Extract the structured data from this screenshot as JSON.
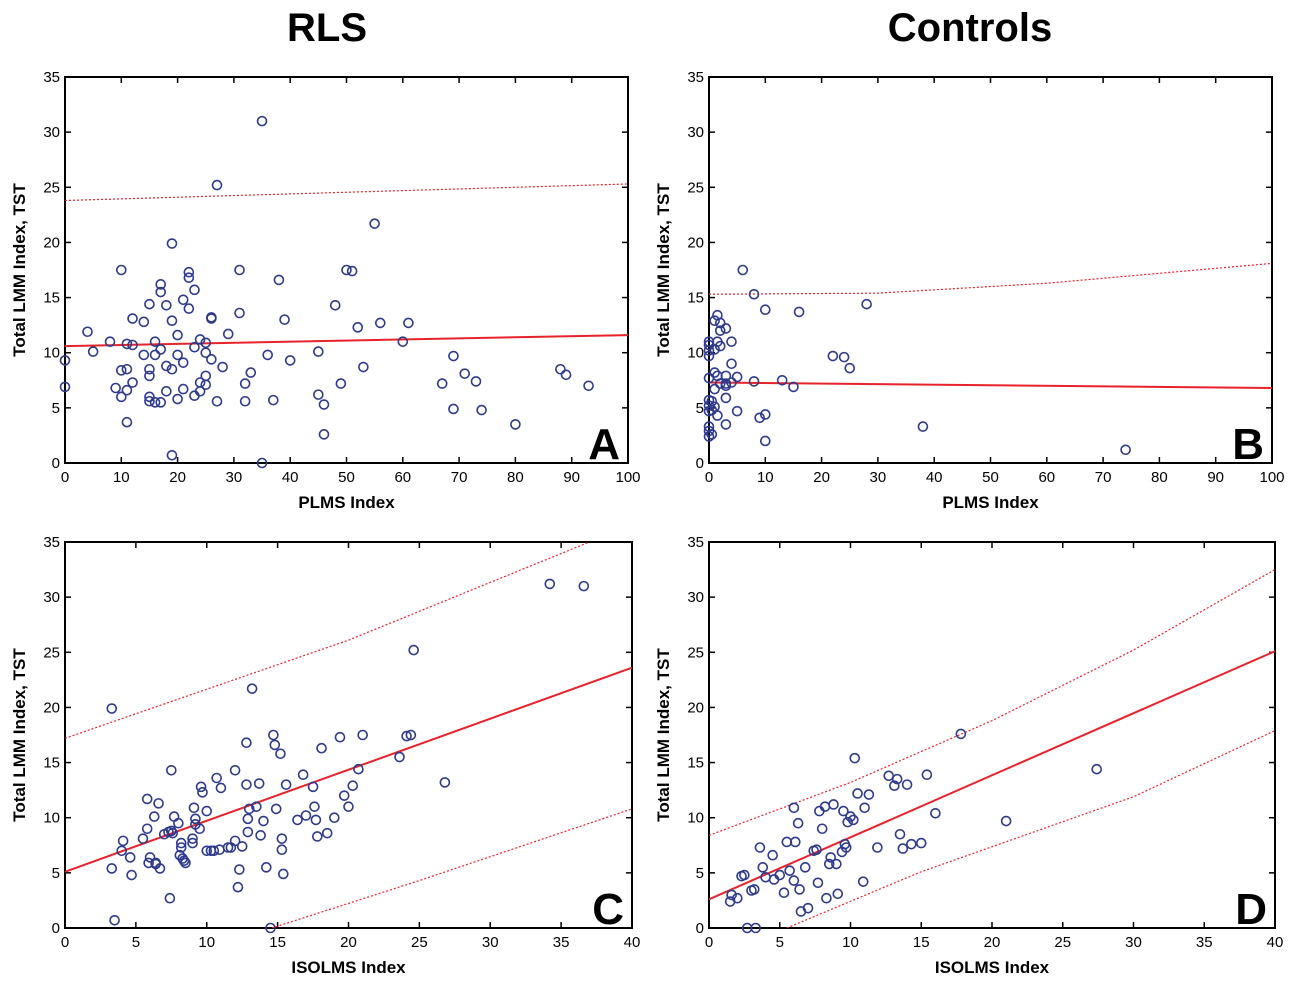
{
  "column_titles": [
    "RLS",
    "Controls"
  ],
  "colors": {
    "fit_line": "#e8222a",
    "points": "#2e3a8c",
    "axis": "#000000"
  },
  "chart_data": [
    {
      "panel": "A",
      "type": "scatter",
      "xlabel": "PLMS Index",
      "ylabel": "Total LMM Index, TST",
      "xlim": [
        0,
        100
      ],
      "ylim": [
        0,
        35
      ],
      "xticks": [
        0,
        10,
        20,
        30,
        40,
        50,
        60,
        70,
        80,
        90,
        100
      ],
      "yticks": [
        0,
        5,
        10,
        15,
        20,
        25,
        30,
        35
      ],
      "fit": [
        [
          0,
          10.6
        ],
        [
          100,
          11.6
        ]
      ],
      "band_upper": [
        [
          0,
          23.8
        ],
        [
          100,
          25.3
        ]
      ],
      "band_lower": [],
      "points": [
        [
          0,
          9.3
        ],
        [
          0,
          6.9
        ],
        [
          4,
          11.9
        ],
        [
          5,
          10.1
        ],
        [
          8,
          11
        ],
        [
          9,
          6.8
        ],
        [
          10,
          17.5
        ],
        [
          10,
          8.4
        ],
        [
          10,
          6
        ],
        [
          11,
          10.8
        ],
        [
          11,
          8.5
        ],
        [
          11,
          3.7
        ],
        [
          11,
          6.6
        ],
        [
          12,
          10.7
        ],
        [
          12,
          13.1
        ],
        [
          12,
          7.3
        ],
        [
          14,
          9.8
        ],
        [
          14,
          12.8
        ],
        [
          15,
          14.4
        ],
        [
          15,
          6
        ],
        [
          15,
          8.5
        ],
        [
          15,
          5.6
        ],
        [
          15,
          7.9
        ],
        [
          16,
          9.8
        ],
        [
          16,
          11
        ],
        [
          16,
          5.5
        ],
        [
          17,
          16.2
        ],
        [
          17,
          15.5
        ],
        [
          17,
          5.5
        ],
        [
          17,
          10.3
        ],
        [
          18,
          14.3
        ],
        [
          18,
          8.8
        ],
        [
          18,
          6.5
        ],
        [
          19,
          19.9
        ],
        [
          19,
          8.5
        ],
        [
          19,
          12.9
        ],
        [
          19,
          0.7
        ],
        [
          20,
          11.6
        ],
        [
          20,
          9.8
        ],
        [
          20,
          5.8
        ],
        [
          21,
          14.8
        ],
        [
          21,
          6.7
        ],
        [
          21,
          9.1
        ],
        [
          22,
          17.3
        ],
        [
          22,
          16.8
        ],
        [
          22,
          14
        ],
        [
          23,
          15.7
        ],
        [
          23,
          6.1
        ],
        [
          23,
          10.5
        ],
        [
          24,
          11.2
        ],
        [
          24,
          7.3
        ],
        [
          24,
          6.5
        ],
        [
          25,
          10.9
        ],
        [
          25,
          10
        ],
        [
          25,
          7.9
        ],
        [
          25,
          7.1
        ],
        [
          26,
          9.4
        ],
        [
          26,
          13.1
        ],
        [
          26,
          13.2
        ],
        [
          27,
          5.6
        ],
        [
          27,
          25.2
        ],
        [
          28,
          8.7
        ],
        [
          29,
          11.7
        ],
        [
          31,
          17.5
        ],
        [
          31,
          13.6
        ],
        [
          32,
          7.2
        ],
        [
          32,
          5.6
        ],
        [
          33,
          8.2
        ],
        [
          35,
          31
        ],
        [
          35,
          0
        ],
        [
          36,
          9.8
        ],
        [
          37,
          5.7
        ],
        [
          38,
          16.6
        ],
        [
          39,
          13
        ],
        [
          40,
          9.3
        ],
        [
          45,
          6.2
        ],
        [
          45,
          10.1
        ],
        [
          46,
          5.3
        ],
        [
          46,
          2.6
        ],
        [
          48,
          14.3
        ],
        [
          49,
          7.2
        ],
        [
          50,
          17.5
        ],
        [
          51,
          17.4
        ],
        [
          52,
          12.3
        ],
        [
          53,
          8.7
        ],
        [
          55,
          21.7
        ],
        [
          56,
          12.7
        ],
        [
          60,
          11
        ],
        [
          61,
          12.7
        ],
        [
          67,
          7.2
        ],
        [
          69,
          9.7
        ],
        [
          69,
          4.9
        ],
        [
          71,
          8.1
        ],
        [
          73,
          7.4
        ],
        [
          74,
          4.8
        ],
        [
          80,
          3.5
        ],
        [
          88,
          8.5
        ],
        [
          89,
          8
        ],
        [
          93,
          7
        ]
      ]
    },
    {
      "panel": "B",
      "type": "scatter",
      "xlabel": "PLMS Index",
      "ylabel": "Total LMM Index, TST",
      "xlim": [
        0,
        100
      ],
      "ylim": [
        0,
        35
      ],
      "xticks": [
        0,
        10,
        20,
        30,
        40,
        50,
        60,
        70,
        80,
        90,
        100
      ],
      "yticks": [
        0,
        5,
        10,
        15,
        20,
        25,
        30,
        35
      ],
      "fit": [
        [
          0,
          7.3
        ],
        [
          100,
          6.8
        ]
      ],
      "band_upper": [
        [
          0,
          15.3
        ],
        [
          30,
          15.4
        ],
        [
          60,
          16.3
        ],
        [
          100,
          18.1
        ]
      ],
      "band_lower": [],
      "points": [
        [
          0,
          11
        ],
        [
          0,
          10.7
        ],
        [
          0,
          10.2
        ],
        [
          0,
          9.7
        ],
        [
          0,
          7.7
        ],
        [
          0,
          5.7
        ],
        [
          0,
          5.2
        ],
        [
          0,
          4.7
        ],
        [
          0,
          3.3
        ],
        [
          0,
          2.9
        ],
        [
          0,
          2.4
        ],
        [
          0.5,
          5.6
        ],
        [
          0.5,
          4.8
        ],
        [
          0.5,
          2.6
        ],
        [
          1,
          12.9
        ],
        [
          1,
          10.3
        ],
        [
          1,
          8.2
        ],
        [
          1,
          6.7
        ],
        [
          1,
          5.1
        ],
        [
          1.5,
          13.4
        ],
        [
          1.5,
          11
        ],
        [
          1.5,
          7.9
        ],
        [
          1.5,
          4.3
        ],
        [
          2,
          12.7
        ],
        [
          2,
          12
        ],
        [
          2,
          10.6
        ],
        [
          2,
          7.2
        ],
        [
          3,
          12.2
        ],
        [
          3,
          7.9
        ],
        [
          3,
          7.2
        ],
        [
          3,
          7
        ],
        [
          3,
          5.9
        ],
        [
          3,
          3.5
        ],
        [
          4,
          11
        ],
        [
          4,
          9
        ],
        [
          4,
          7.3
        ],
        [
          5,
          7.8
        ],
        [
          5,
          4.7
        ],
        [
          6,
          17.5
        ],
        [
          8,
          15.3
        ],
        [
          8,
          7.4
        ],
        [
          9,
          4.1
        ],
        [
          10,
          13.9
        ],
        [
          10,
          4.4
        ],
        [
          10,
          2
        ],
        [
          13,
          7.5
        ],
        [
          15,
          6.9
        ],
        [
          16,
          13.7
        ],
        [
          22,
          9.7
        ],
        [
          24,
          9.6
        ],
        [
          25,
          8.6
        ],
        [
          28,
          14.4
        ],
        [
          38,
          3.3
        ],
        [
          74,
          1.2
        ]
      ]
    },
    {
      "panel": "C",
      "type": "scatter",
      "xlabel": "ISOLMS Index",
      "ylabel": "Total LMM Index, TST",
      "xlim": [
        0,
        40
      ],
      "ylim": [
        0,
        35
      ],
      "xticks": [
        0,
        5,
        10,
        15,
        20,
        25,
        30,
        35,
        40
      ],
      "yticks": [
        0,
        5,
        10,
        15,
        20,
        25,
        30,
        35
      ],
      "fit": [
        [
          0,
          5.1
        ],
        [
          40,
          23.6
        ]
      ],
      "band_upper": [
        [
          0,
          17.2
        ],
        [
          20,
          26.1
        ],
        [
          37,
          35
        ]
      ],
      "band_lower": [
        [
          14.6,
          0
        ],
        [
          25,
          4.3
        ],
        [
          40,
          10.8
        ]
      ],
      "points": [
        [
          3.3,
          19.9
        ],
        [
          3.3,
          5.4
        ],
        [
          3.5,
          0.7
        ],
        [
          4,
          7
        ],
        [
          4.1,
          7.9
        ],
        [
          4.6,
          6.4
        ],
        [
          4.7,
          4.8
        ],
        [
          5.5,
          8.1
        ],
        [
          5.8,
          11.7
        ],
        [
          5.8,
          9
        ],
        [
          5.9,
          5.9
        ],
        [
          6,
          6.4
        ],
        [
          6.3,
          10.1
        ],
        [
          6.4,
          5.9
        ],
        [
          6.4,
          5.8
        ],
        [
          6.6,
          11.3
        ],
        [
          6.7,
          5.4
        ],
        [
          7,
          8.5
        ],
        [
          7.3,
          8.7
        ],
        [
          7.4,
          2.7
        ],
        [
          7.5,
          14.3
        ],
        [
          7.5,
          8.8
        ],
        [
          7.6,
          8.6
        ],
        [
          7.7,
          10.1
        ],
        [
          8,
          9.5
        ],
        [
          8.1,
          6.6
        ],
        [
          8.2,
          7.7
        ],
        [
          8.2,
          7.3
        ],
        [
          8.3,
          6.3
        ],
        [
          8.4,
          6.1
        ],
        [
          8.5,
          5.9
        ],
        [
          9,
          8.1
        ],
        [
          9,
          7.7
        ],
        [
          9.1,
          10.9
        ],
        [
          9.2,
          9.4
        ],
        [
          9.2,
          9.9
        ],
        [
          9.5,
          9
        ],
        [
          9.6,
          12.8
        ],
        [
          9.7,
          12.3
        ],
        [
          10,
          7
        ],
        [
          10,
          10.6
        ],
        [
          10.3,
          7
        ],
        [
          10.5,
          7
        ],
        [
          10.7,
          13.6
        ],
        [
          10.9,
          7.1
        ],
        [
          11,
          12.7
        ],
        [
          11.5,
          7.3
        ],
        [
          11.7,
          7.3
        ],
        [
          12,
          14.3
        ],
        [
          12,
          7.9
        ],
        [
          12.2,
          3.7
        ],
        [
          12.3,
          5.3
        ],
        [
          12.5,
          7.4
        ],
        [
          12.8,
          16.8
        ],
        [
          12.8,
          13
        ],
        [
          12.9,
          9.9
        ],
        [
          12.9,
          8.7
        ],
        [
          13,
          10.8
        ],
        [
          13.2,
          21.7
        ],
        [
          13.5,
          11
        ],
        [
          13.7,
          13.1
        ],
        [
          13.8,
          8.4
        ],
        [
          14,
          9.7
        ],
        [
          14.2,
          5.5
        ],
        [
          14.5,
          0
        ],
        [
          14.7,
          17.5
        ],
        [
          14.8,
          16.6
        ],
        [
          14.9,
          10.8
        ],
        [
          15.2,
          15.8
        ],
        [
          15.3,
          8.1
        ],
        [
          15.3,
          7.1
        ],
        [
          15.4,
          4.9
        ],
        [
          15.6,
          13
        ],
        [
          16.4,
          9.8
        ],
        [
          16.8,
          13.9
        ],
        [
          17,
          10.2
        ],
        [
          17.5,
          12.8
        ],
        [
          17.6,
          11
        ],
        [
          17.7,
          9.8
        ],
        [
          17.8,
          8.3
        ],
        [
          18.1,
          16.3
        ],
        [
          18.5,
          8.6
        ],
        [
          19,
          10
        ],
        [
          19.4,
          17.3
        ],
        [
          19.7,
          12
        ],
        [
          20,
          11
        ],
        [
          20.3,
          12.9
        ],
        [
          20.7,
          14.4
        ],
        [
          21,
          17.5
        ],
        [
          23.6,
          15.5
        ],
        [
          24.1,
          17.4
        ],
        [
          24.4,
          17.5
        ],
        [
          24.6,
          25.2
        ],
        [
          26.8,
          13.2
        ],
        [
          34.2,
          31.2
        ],
        [
          36.6,
          31
        ]
      ]
    },
    {
      "panel": "D",
      "type": "scatter",
      "xlabel": "ISOLMS Index",
      "ylabel": "Total LMM Index, TST",
      "xlim": [
        0,
        40
      ],
      "ylim": [
        0,
        35
      ],
      "xticks": [
        0,
        5,
        10,
        15,
        20,
        25,
        30,
        35,
        40
      ],
      "yticks": [
        0,
        5,
        10,
        15,
        20,
        25,
        30,
        35
      ],
      "fit": [
        [
          0,
          2.6
        ],
        [
          40,
          25.1
        ]
      ],
      "band_upper": [
        [
          0,
          8.4
        ],
        [
          10,
          13.2
        ],
        [
          20,
          18.8
        ],
        [
          30,
          25.2
        ],
        [
          40,
          32.5
        ]
      ],
      "band_lower": [
        [
          5.5,
          0
        ],
        [
          15,
          5.1
        ],
        [
          30,
          11.9
        ],
        [
          40,
          17.9
        ]
      ],
      "points": [
        [
          1.5,
          2.4
        ],
        [
          1.6,
          3
        ],
        [
          2,
          2.7
        ],
        [
          2.3,
          4.7
        ],
        [
          2.5,
          4.8
        ],
        [
          2.7,
          0
        ],
        [
          3,
          3.4
        ],
        [
          3.2,
          3.5
        ],
        [
          3.3,
          0
        ],
        [
          3.6,
          7.3
        ],
        [
          3.8,
          5.5
        ],
        [
          4,
          4.6
        ],
        [
          4.5,
          6.6
        ],
        [
          4.6,
          4.4
        ],
        [
          5,
          4.8
        ],
        [
          5.3,
          3.2
        ],
        [
          5.5,
          7.8
        ],
        [
          5.7,
          5.2
        ],
        [
          6,
          4.3
        ],
        [
          6,
          10.9
        ],
        [
          6.1,
          7.8
        ],
        [
          6.3,
          9.5
        ],
        [
          6.4,
          3.5
        ],
        [
          6.5,
          1.5
        ],
        [
          6.8,
          5.5
        ],
        [
          7,
          1.8
        ],
        [
          7.4,
          7
        ],
        [
          7.6,
          7.1
        ],
        [
          7.7,
          4.1
        ],
        [
          7.8,
          10.6
        ],
        [
          8,
          9
        ],
        [
          8.2,
          11
        ],
        [
          8.3,
          2.7
        ],
        [
          8.5,
          5.8
        ],
        [
          8.6,
          6.4
        ],
        [
          8.8,
          11.2
        ],
        [
          9,
          5.8
        ],
        [
          9.1,
          3.1
        ],
        [
          9.4,
          6.9
        ],
        [
          9.5,
          10.6
        ],
        [
          9.6,
          7.6
        ],
        [
          9.7,
          7.3
        ],
        [
          9.8,
          9.6
        ],
        [
          10,
          10.1
        ],
        [
          10.2,
          9.8
        ],
        [
          10.3,
          15.4
        ],
        [
          10.5,
          12.2
        ],
        [
          10.9,
          4.2
        ],
        [
          11,
          10.9
        ],
        [
          11.3,
          12.1
        ],
        [
          11.9,
          7.3
        ],
        [
          12.7,
          13.8
        ],
        [
          13.1,
          12.9
        ],
        [
          13.3,
          13.5
        ],
        [
          13.5,
          8.5
        ],
        [
          13.7,
          7.2
        ],
        [
          14,
          13
        ],
        [
          14.3,
          7.6
        ],
        [
          15,
          7.7
        ],
        [
          15.4,
          13.9
        ],
        [
          16,
          10.4
        ],
        [
          17.8,
          17.6
        ],
        [
          21,
          9.7
        ],
        [
          27.4,
          14.4
        ]
      ]
    }
  ]
}
